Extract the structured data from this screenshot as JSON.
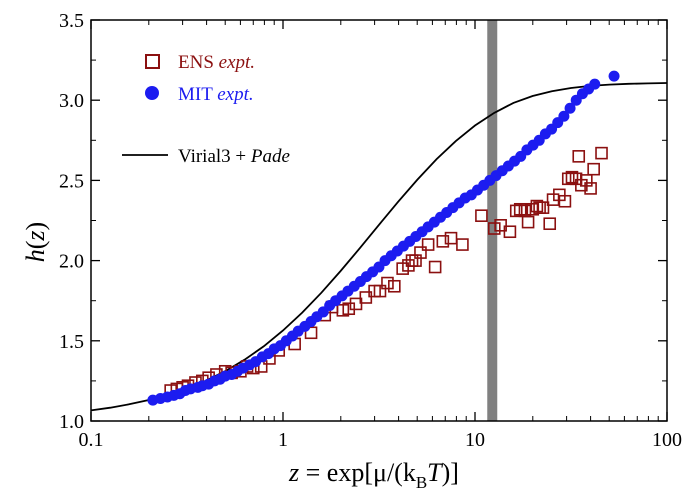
{
  "chart_data": {
    "type": "scatter",
    "x_scale": "log",
    "xlim": [
      0.1,
      100
    ],
    "ylim": [
      1.0,
      3.5
    ],
    "x_ticks": [
      0.1,
      1,
      10,
      100
    ],
    "x_tick_labels": [
      "0.1",
      "1",
      "10",
      "100"
    ],
    "y_ticks": [
      1.0,
      1.5,
      2.0,
      2.5,
      3.0,
      3.5
    ],
    "y_tick_labels": [
      "1.0",
      "1.5",
      "2.0",
      "2.5",
      "3.0",
      "3.5"
    ],
    "xlabel": {
      "prefix": "z",
      "eq": " = exp[μ/(k",
      "sub": "B",
      "tvar": "T",
      "end": ")]"
    },
    "ylabel": {
      "h": "h",
      "open": "(",
      "z": "z",
      "close": ")"
    },
    "vband": {
      "x": 12.3,
      "color": "#808080"
    },
    "grid": false,
    "legend_placement": "top-left",
    "series": [
      {
        "legend_main": "ENS",
        "legend_em": "expt.",
        "marker": "open-square",
        "color": "#8b1010",
        "points": [
          [
            0.26,
            1.19
          ],
          [
            0.28,
            1.2
          ],
          [
            0.3,
            1.21
          ],
          [
            0.32,
            1.22
          ],
          [
            0.35,
            1.24
          ],
          [
            0.38,
            1.25
          ],
          [
            0.41,
            1.27
          ],
          [
            0.45,
            1.29
          ],
          [
            0.5,
            1.31
          ],
          [
            0.54,
            1.3
          ],
          [
            0.6,
            1.31
          ],
          [
            0.65,
            1.34
          ],
          [
            0.7,
            1.33
          ],
          [
            0.77,
            1.34
          ],
          [
            0.85,
            1.39
          ],
          [
            0.95,
            1.44
          ],
          [
            1.15,
            1.48
          ],
          [
            1.4,
            1.55
          ],
          [
            1.65,
            1.66
          ],
          [
            1.8,
            1.71
          ],
          [
            2.05,
            1.69
          ],
          [
            2.2,
            1.7
          ],
          [
            2.4,
            1.73
          ],
          [
            2.7,
            1.77
          ],
          [
            3.0,
            1.81
          ],
          [
            3.2,
            1.81
          ],
          [
            3.5,
            1.86
          ],
          [
            3.8,
            1.84
          ],
          [
            4.2,
            1.95
          ],
          [
            4.5,
            1.97
          ],
          [
            4.7,
            2.0
          ],
          [
            4.9,
            2.0
          ],
          [
            5.2,
            2.05
          ],
          [
            5.7,
            2.1
          ],
          [
            6.2,
            1.96
          ],
          [
            6.8,
            2.12
          ],
          [
            7.5,
            2.14
          ],
          [
            8.6,
            2.1
          ],
          [
            10.8,
            2.28
          ],
          [
            12.6,
            2.2
          ],
          [
            13.6,
            2.22
          ],
          [
            15.2,
            2.18
          ],
          [
            16.4,
            2.31
          ],
          [
            17.2,
            2.32
          ],
          [
            18.2,
            2.31
          ],
          [
            18.9,
            2.24
          ],
          [
            20.0,
            2.32
          ],
          [
            21.0,
            2.34
          ],
          [
            21.7,
            2.33
          ],
          [
            22.6,
            2.33
          ],
          [
            24.5,
            2.23
          ],
          [
            25.5,
            2.38
          ],
          [
            27.5,
            2.41
          ],
          [
            29.4,
            2.37
          ],
          [
            30.6,
            2.51
          ],
          [
            32.0,
            2.52
          ],
          [
            33.6,
            2.51
          ],
          [
            34.7,
            2.65
          ],
          [
            35.8,
            2.47
          ],
          [
            38.0,
            2.5
          ],
          [
            40.0,
            2.45
          ],
          [
            41.5,
            2.57
          ],
          [
            45.6,
            2.67
          ]
        ]
      },
      {
        "legend_main": "MIT",
        "legend_em": "expt.",
        "marker": "filled-circle",
        "color": "#1c1cf0",
        "points": [
          [
            0.21,
            1.13
          ],
          [
            0.23,
            1.14
          ],
          [
            0.25,
            1.15
          ],
          [
            0.27,
            1.16
          ],
          [
            0.29,
            1.17
          ],
          [
            0.31,
            1.19
          ],
          [
            0.33,
            1.2
          ],
          [
            0.36,
            1.21
          ],
          [
            0.38,
            1.22
          ],
          [
            0.41,
            1.23
          ],
          [
            0.44,
            1.25
          ],
          [
            0.47,
            1.26
          ],
          [
            0.5,
            1.28
          ],
          [
            0.54,
            1.29
          ],
          [
            0.58,
            1.31
          ],
          [
            0.62,
            1.33
          ],
          [
            0.67,
            1.35
          ],
          [
            0.72,
            1.37
          ],
          [
            0.78,
            1.4
          ],
          [
            0.84,
            1.42
          ],
          [
            0.9,
            1.45
          ],
          [
            0.97,
            1.47
          ],
          [
            1.04,
            1.5
          ],
          [
            1.12,
            1.53
          ],
          [
            1.2,
            1.56
          ],
          [
            1.3,
            1.59
          ],
          [
            1.4,
            1.62
          ],
          [
            1.5,
            1.65
          ],
          [
            1.62,
            1.68
          ],
          [
            1.75,
            1.72
          ],
          [
            1.88,
            1.75
          ],
          [
            2.03,
            1.78
          ],
          [
            2.18,
            1.81
          ],
          [
            2.35,
            1.84
          ],
          [
            2.53,
            1.87
          ],
          [
            2.72,
            1.9
          ],
          [
            2.93,
            1.93
          ],
          [
            3.16,
            1.96
          ],
          [
            3.4,
            2.0
          ],
          [
            3.66,
            2.03
          ],
          [
            3.94,
            2.06
          ],
          [
            4.24,
            2.09
          ],
          [
            4.57,
            2.12
          ],
          [
            4.92,
            2.15
          ],
          [
            5.3,
            2.18
          ],
          [
            5.7,
            2.21
          ],
          [
            6.14,
            2.24
          ],
          [
            6.61,
            2.27
          ],
          [
            7.12,
            2.3
          ],
          [
            7.67,
            2.33
          ],
          [
            8.26,
            2.36
          ],
          [
            8.89,
            2.39
          ],
          [
            9.57,
            2.41
          ],
          [
            10.3,
            2.44
          ],
          [
            11.1,
            2.47
          ],
          [
            11.95,
            2.5
          ],
          [
            12.87,
            2.53
          ],
          [
            13.86,
            2.56
          ],
          [
            14.92,
            2.59
          ],
          [
            16.07,
            2.62
          ],
          [
            17.3,
            2.65
          ],
          [
            18.63,
            2.69
          ],
          [
            20.06,
            2.72
          ],
          [
            21.6,
            2.75
          ],
          [
            23.26,
            2.79
          ],
          [
            25.05,
            2.82
          ],
          [
            26.97,
            2.86
          ],
          [
            29.04,
            2.9
          ],
          [
            31.27,
            2.95
          ],
          [
            33.67,
            3.0
          ],
          [
            36.26,
            3.04
          ],
          [
            39.04,
            3.07
          ],
          [
            42.04,
            3.1
          ],
          [
            53.0,
            3.15
          ]
        ]
      },
      {
        "legend_main": "Virial3 + ",
        "legend_em": "Pade",
        "type": "line",
        "color": "#000000",
        "points": [
          [
            0.1,
            1.066
          ],
          [
            0.126,
            1.083
          ],
          [
            0.158,
            1.104
          ],
          [
            0.2,
            1.131
          ],
          [
            0.251,
            1.163
          ],
          [
            0.316,
            1.203
          ],
          [
            0.398,
            1.252
          ],
          [
            0.501,
            1.311
          ],
          [
            0.631,
            1.382
          ],
          [
            0.794,
            1.466
          ],
          [
            1.0,
            1.564
          ],
          [
            1.259,
            1.676
          ],
          [
            1.585,
            1.8
          ],
          [
            1.995,
            1.935
          ],
          [
            2.512,
            2.077
          ],
          [
            3.162,
            2.223
          ],
          [
            3.981,
            2.367
          ],
          [
            5.012,
            2.505
          ],
          [
            6.31,
            2.633
          ],
          [
            7.943,
            2.745
          ],
          [
            10.0,
            2.842
          ],
          [
            12.59,
            2.921
          ],
          [
            15.85,
            2.983
          ],
          [
            19.95,
            3.026
          ],
          [
            25.12,
            3.056
          ],
          [
            31.62,
            3.076
          ],
          [
            39.81,
            3.089
          ],
          [
            50.12,
            3.097
          ],
          [
            63.1,
            3.102
          ],
          [
            79.43,
            3.105
          ],
          [
            100.0,
            3.107
          ]
        ]
      }
    ]
  }
}
